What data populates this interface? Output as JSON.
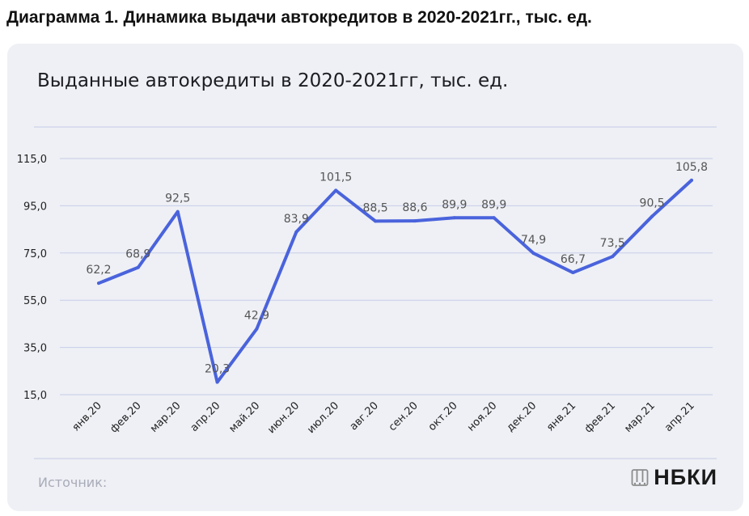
{
  "figure_title": "Диаграмма 1. Динамика выдачи автокредитов в 2020-2021гг., тыс. ед.",
  "footer": {
    "source_label": "Источник:",
    "brand_name": "НБКИ",
    "brand_icon": "nbki-logo-icon"
  },
  "colors": {
    "line": "#4a63dc",
    "grid": "#c7cde8",
    "card_background": "#eef0f5",
    "axis_text": "#222222",
    "source_text": "#a9abb8"
  },
  "chart_data": {
    "type": "line",
    "title": "Выданные автокредиты в 2020-2021гг,  тыс. ед.",
    "xlabel": "",
    "ylabel": "",
    "ylim": [
      15,
      115
    ],
    "yticks": [
      "15,0",
      "35,0",
      "55,0",
      "75,0",
      "95,0",
      "115,0"
    ],
    "grid": true,
    "categories": [
      "янв.20",
      "фев.20",
      "мар.20",
      "апр.20",
      "май.20",
      "июн.20",
      "июл.20",
      "авг.20",
      "сен.20",
      "окт.20",
      "ноя.20",
      "дек.20",
      "янв.21",
      "фев.21",
      "мар.21",
      "апр.21"
    ],
    "series": [
      {
        "values": [
          62.2,
          68.9,
          92.5,
          20.3,
          42.9,
          83.9,
          101.5,
          88.5,
          88.6,
          89.9,
          89.9,
          74.9,
          66.7,
          73.5,
          90.5,
          105.8
        ],
        "labels": [
          "62,2",
          "68,9",
          "92,5",
          "20,3",
          "42,9",
          "83,9",
          "101,5",
          "88,5",
          "88,6",
          "89,9",
          "89,9",
          "74,9",
          "66,7",
          "73,5",
          "90,5",
          "105,8"
        ]
      }
    ]
  }
}
